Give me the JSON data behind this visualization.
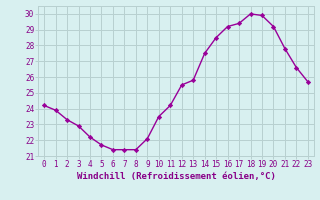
{
  "x": [
    0,
    1,
    2,
    3,
    4,
    5,
    6,
    7,
    8,
    9,
    10,
    11,
    12,
    13,
    14,
    15,
    16,
    17,
    18,
    19,
    20,
    21,
    22,
    23
  ],
  "y": [
    24.2,
    23.9,
    23.3,
    22.9,
    22.2,
    21.7,
    21.4,
    21.4,
    21.4,
    22.1,
    23.5,
    24.2,
    25.5,
    25.8,
    27.5,
    28.5,
    29.2,
    29.4,
    30.0,
    29.9,
    29.2,
    27.8,
    26.6,
    25.7
  ],
  "line_color": "#990099",
  "marker": "D",
  "marker_size": 2.2,
  "bg_color": "#d8f0f0",
  "grid_color": "#b8d0d0",
  "xlabel": "Windchill (Refroidissement éolien,°C)",
  "ylim": [
    21,
    30.5
  ],
  "yticks": [
    21,
    22,
    23,
    24,
    25,
    26,
    27,
    28,
    29,
    30
  ],
  "xticks": [
    0,
    1,
    2,
    3,
    4,
    5,
    6,
    7,
    8,
    9,
    10,
    11,
    12,
    13,
    14,
    15,
    16,
    17,
    18,
    19,
    20,
    21,
    22,
    23
  ],
  "xlabel_fontsize": 6.5,
  "tick_fontsize": 5.5,
  "axis_label_color": "#880088",
  "linewidth": 1.0
}
